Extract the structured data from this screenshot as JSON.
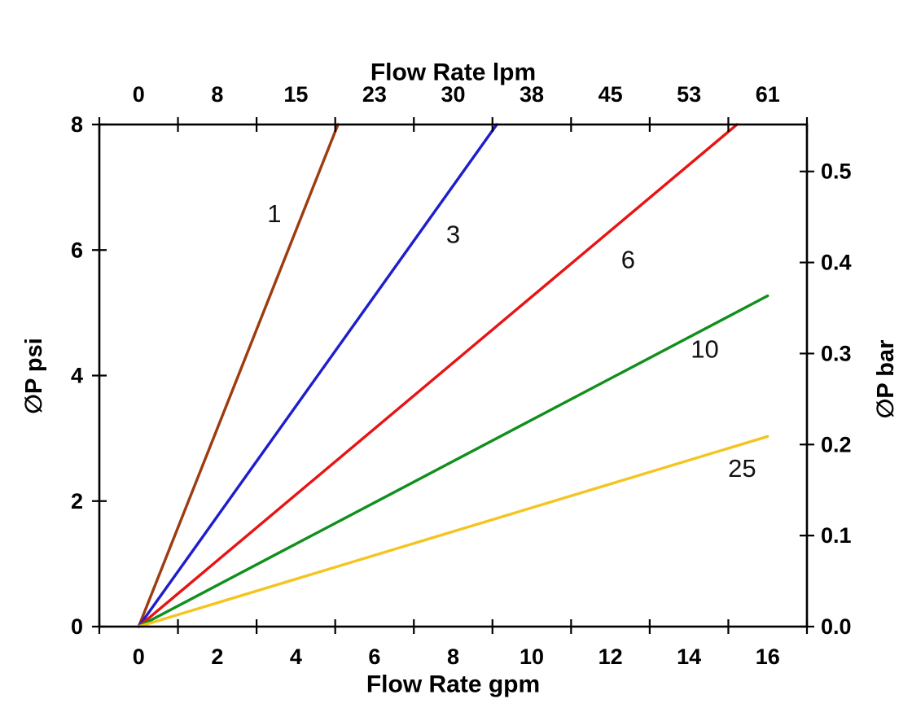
{
  "chart_data": {
    "type": "line",
    "background": "#ffffff",
    "axis_color": "#000000",
    "grid": false,
    "legend": "inline-labels-on-curves",
    "x_bottom": {
      "label": "Flow Rate gpm",
      "tick_labels": [
        "0",
        "2",
        "4",
        "6",
        "8",
        "10",
        "12",
        "14",
        "16"
      ],
      "label_values_gpm": [
        0,
        2,
        4,
        6,
        8,
        10,
        12,
        14,
        16
      ],
      "axis_range_gpm": [
        -1,
        17
      ],
      "tick_positions_gpm": [
        -1,
        1,
        3,
        5,
        7,
        9,
        11,
        13,
        15,
        17
      ]
    },
    "x_top": {
      "label": "Flow Rate lpm",
      "tick_labels": [
        "0",
        "8",
        "15",
        "23",
        "30",
        "38",
        "45",
        "53",
        "61"
      ]
    },
    "y_left": {
      "label": "∅P psi",
      "tick_labels": [
        "0",
        "2",
        "4",
        "6",
        "8"
      ],
      "tick_values_psi": [
        0,
        2,
        4,
        6,
        8
      ],
      "axis_range_psi": [
        0,
        8
      ]
    },
    "y_right": {
      "label": "∅P bar",
      "tick_labels": [
        "0.0",
        "0.1",
        "0.2",
        "0.3",
        "0.4",
        "0.5"
      ],
      "tick_values_bar": [
        0.0,
        0.1,
        0.2,
        0.3,
        0.4,
        0.5
      ],
      "psi_per_bar": 14.5038
    },
    "series": [
      {
        "name": "1",
        "color": "#9c3c10",
        "points_gpm_psi": [
          [
            0,
            0
          ],
          [
            5.07,
            8
          ]
        ],
        "label_pos_gpm_psi": [
          3.45,
          6.58
        ]
      },
      {
        "name": "3",
        "color": "#1e1ecc",
        "points_gpm_psi": [
          [
            0,
            0
          ],
          [
            9.11,
            8
          ]
        ],
        "label_pos_gpm_psi": [
          8.0,
          6.25
        ]
      },
      {
        "name": "6",
        "color": "#e81414",
        "points_gpm_psi": [
          [
            0,
            0
          ],
          [
            15.22,
            8
          ]
        ],
        "label_pos_gpm_psi": [
          12.45,
          5.85
        ]
      },
      {
        "name": "10",
        "color": "#118f1e",
        "points_gpm_psi": [
          [
            0,
            0
          ],
          [
            16,
            5.27
          ]
        ],
        "label_pos_gpm_psi": [
          14.4,
          4.42
        ]
      },
      {
        "name": "25",
        "color": "#f4c41f",
        "points_gpm_psi": [
          [
            0,
            0
          ],
          [
            16,
            3.03
          ]
        ],
        "label_pos_gpm_psi": [
          15.35,
          2.52
        ]
      }
    ]
  }
}
